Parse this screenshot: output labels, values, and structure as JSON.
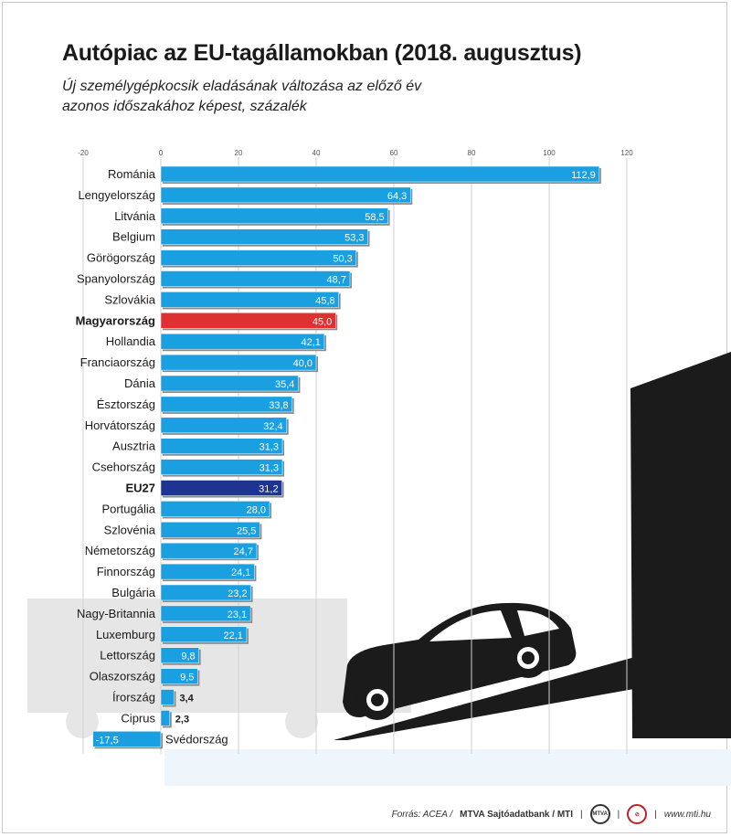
{
  "title": "Autópiac az EU-tagállamokban (2018. augusztus)",
  "subtitle_line1": "Új személygépkocsik eladásának változása az előző év",
  "subtitle_line2": "azonos időszakához képest, százalék",
  "source": {
    "prefix": "Forrás: ACEA /",
    "bold": "MTVA Sajtóadatbank / MTI",
    "logo1": "MTVA",
    "website": "www.mti.hu"
  },
  "colors": {
    "bar": "#1aa0e0",
    "highlight_hu": "#e03030",
    "highlight_eu": "#1d3590",
    "grid": "#d0d0d0"
  },
  "chart_data": {
    "type": "bar",
    "orientation": "horizontal",
    "xlim": [
      -20,
      120
    ],
    "xticks": [
      -20,
      0,
      20,
      40,
      60,
      80,
      100,
      120
    ],
    "grid": true,
    "categories": [
      "Románia",
      "Lengyelország",
      "Litvánia",
      "Belgium",
      "Görögország",
      "Spanyolország",
      "Szlovákia",
      "Magyarország",
      "Hollandia",
      "Franciaország",
      "Dánia",
      "Észtország",
      "Horvátország",
      "Ausztria",
      "Csehország",
      "EU27",
      "Portugália",
      "Szlovénia",
      "Németország",
      "Finnország",
      "Bulgária",
      "Nagy-Britannia",
      "Luxemburg",
      "Lettország",
      "Olaszország",
      "Írország",
      "Ciprus",
      "Svédország"
    ],
    "values": [
      112.9,
      64.3,
      58.5,
      53.3,
      50.3,
      48.7,
      45.8,
      45.0,
      42.1,
      40.0,
      35.4,
      33.8,
      32.4,
      31.3,
      31.3,
      31.2,
      28.0,
      25.5,
      24.7,
      24.1,
      23.2,
      23.1,
      22.1,
      9.8,
      9.5,
      3.4,
      2.3,
      -17.5
    ],
    "value_labels": [
      "112,9",
      "64,3",
      "58,5",
      "53,3",
      "50,3",
      "48,7",
      "45,8",
      "45,0",
      "42,1",
      "40,0",
      "35,4",
      "33,8",
      "32,4",
      "31,3",
      "31,3",
      "31,2",
      "28,0",
      "25,5",
      "24,7",
      "24,1",
      "23,2",
      "23,1",
      "22,1",
      "9,8",
      "9,5",
      "3,4",
      "2,3",
      "-17,5"
    ],
    "highlight": {
      "Magyarország": "hu",
      "EU27": "eu"
    }
  }
}
